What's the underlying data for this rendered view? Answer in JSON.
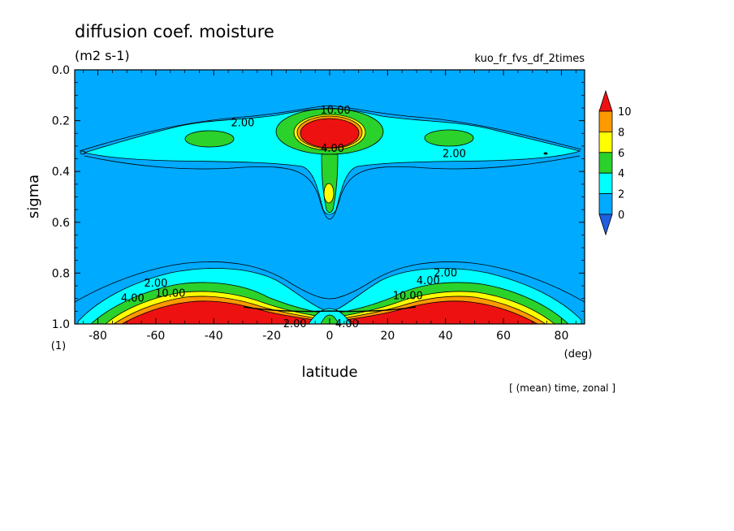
{
  "chart_data": {
    "type": "contour",
    "title": "diffusion coef. moisture",
    "units": "(m2 s-1)",
    "experiment": "kuo_fr_fvs_df_2times",
    "xlabel": "latitude",
    "x_unit": "(deg)",
    "ylabel": "sigma",
    "y_unit": "(1)",
    "footer": "[ (mean) time, zonal ]",
    "xlim": [
      -88,
      88
    ],
    "ylim": [
      1.0,
      0.0
    ],
    "x_ticks": [
      -80,
      -60,
      -40,
      -20,
      0,
      20,
      40,
      60,
      80
    ],
    "x_tick_labels": [
      "-80",
      "-60",
      "-40",
      "-20",
      "0",
      "20",
      "40",
      "60",
      "80"
    ],
    "y_ticks": [
      0.0,
      0.2,
      0.4,
      0.6,
      0.8,
      1.0
    ],
    "y_tick_labels": [
      "0.0",
      "0.2",
      "0.4",
      "0.6",
      "0.8",
      "1.0"
    ],
    "colorbar": {
      "levels": [
        0,
        2,
        4,
        6,
        8,
        10
      ],
      "labels": [
        "0",
        "2",
        "4",
        "6",
        "8",
        "10"
      ],
      "colors": [
        "#1f5fe0",
        "#00aaff",
        "#00ffff",
        "#2bd22b",
        "#ffff00",
        "#ff9900",
        "#ee1111"
      ]
    },
    "contour_labels": [
      {
        "text": "2.00",
        "lat": -30,
        "sigma": 0.21
      },
      {
        "text": "2.00",
        "lat": 43,
        "sigma": 0.33
      },
      {
        "text": "2.00",
        "lat": -60,
        "sigma": 0.84
      },
      {
        "text": "2.00",
        "lat": 40,
        "sigma": 0.8
      },
      {
        "text": "2.00",
        "lat": -12,
        "sigma": 1.0
      },
      {
        "text": "4.00",
        "lat": -68,
        "sigma": 0.9
      },
      {
        "text": "4.00",
        "lat": 34,
        "sigma": 0.83
      },
      {
        "text": "4.00",
        "lat": 6,
        "sigma": 1.0
      },
      {
        "text": "4.00",
        "lat": 1,
        "sigma": 0.31
      },
      {
        "text": "10.00",
        "lat": -55,
        "sigma": 0.88
      },
      {
        "text": "10.00",
        "lat": 27,
        "sigma": 0.89
      },
      {
        "text": "10.00",
        "lat": 2,
        "sigma": 0.16
      }
    ]
  }
}
